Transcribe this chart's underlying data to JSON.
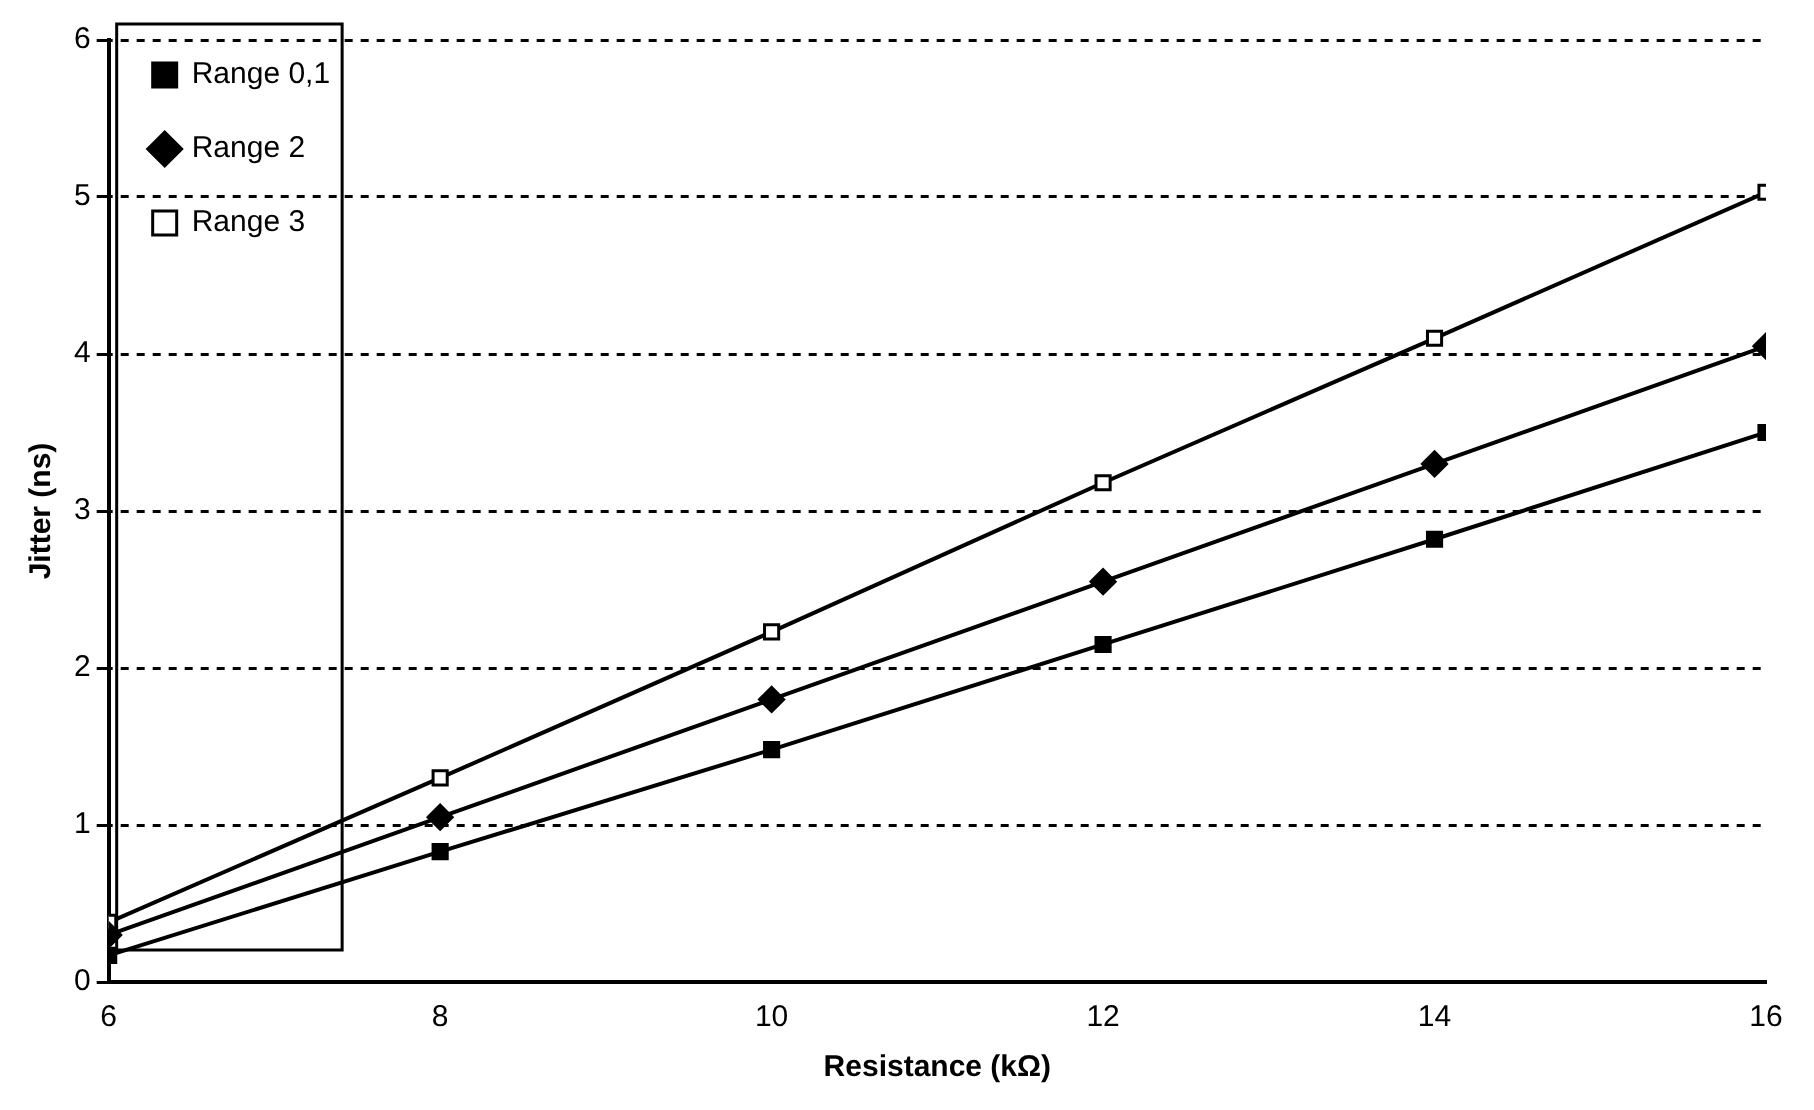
{
  "chart_data": {
    "type": "line",
    "xlabel": "Resistance (kΩ)",
    "ylabel": "Jitter (ns)",
    "x": [
      6,
      8,
      10,
      12,
      14,
      16
    ],
    "series": [
      {
        "name": "Range 0,1",
        "color": "#000000",
        "marker": "square",
        "values": [
          0.17,
          0.83,
          1.48,
          2.15,
          2.82,
          3.5
        ]
      },
      {
        "name": "Range 2",
        "color": "#000000",
        "marker": "diamond",
        "values": [
          0.3,
          1.05,
          1.8,
          2.55,
          3.3,
          4.05
        ]
      },
      {
        "name": "Range 3",
        "color": "#000000",
        "marker": "square",
        "values": [
          0.38,
          1.3,
          2.23,
          3.18,
          4.1,
          5.03
        ]
      }
    ],
    "xlim": [
      6,
      16
    ],
    "xticks": [
      6,
      8,
      10,
      12,
      14,
      16
    ],
    "ylim": [
      0,
      6
    ],
    "yticks": [
      0,
      1,
      2,
      3,
      4,
      5,
      6
    ],
    "grid": "y",
    "legend": "top left",
    "line_style": "solid"
  }
}
